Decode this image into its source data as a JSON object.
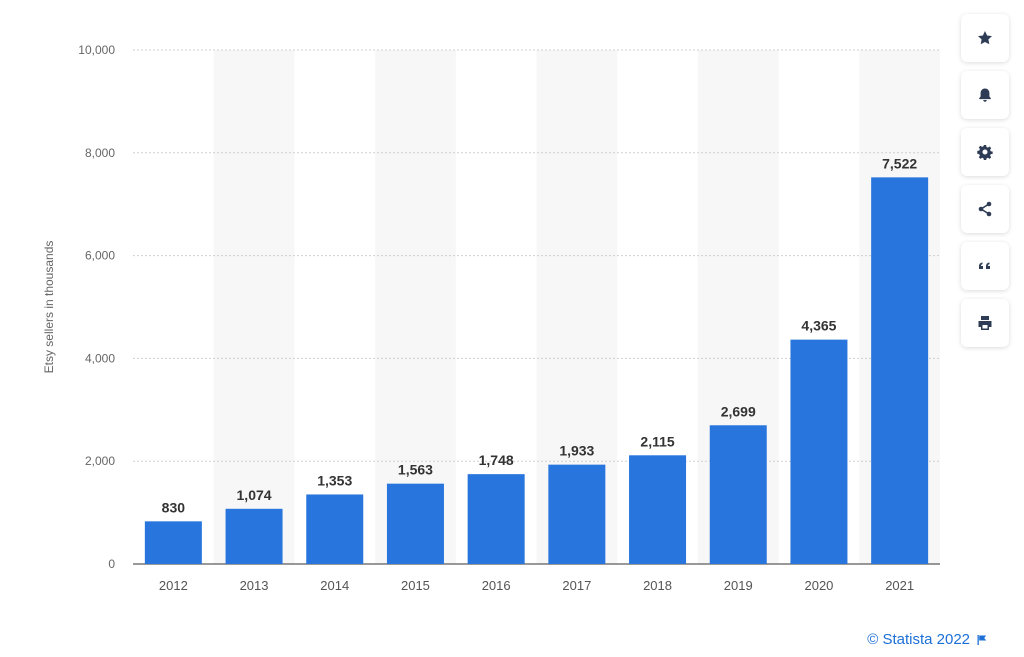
{
  "chart_data": {
    "type": "bar",
    "categories": [
      "2012",
      "2013",
      "2014",
      "2015",
      "2016",
      "2017",
      "2018",
      "2019",
      "2020",
      "2021"
    ],
    "values": [
      830,
      1074,
      1353,
      1563,
      1748,
      1933,
      2115,
      2699,
      4365,
      7522
    ],
    "value_labels": [
      "830",
      "1,074",
      "1,353",
      "1,563",
      "1,748",
      "1,933",
      "2,115",
      "2,699",
      "4,365",
      "7,522"
    ],
    "ylabel": "Etsy sellers in thousands",
    "ylim": [
      0,
      10000
    ],
    "yticks": [
      0,
      2000,
      4000,
      6000,
      8000,
      10000
    ],
    "ytick_labels": [
      "0",
      "2,000",
      "4,000",
      "6,000",
      "8,000",
      "10,000"
    ],
    "grid": true,
    "bar_color": "#2876dd",
    "alt_band_color": "#f7f7f7"
  },
  "toolbar": {
    "buttons": [
      {
        "name": "star",
        "icon": "star-icon"
      },
      {
        "name": "bell",
        "icon": "bell-icon"
      },
      {
        "name": "settings",
        "icon": "gear-icon"
      },
      {
        "name": "share",
        "icon": "share-icon"
      },
      {
        "name": "cite",
        "icon": "quote-icon"
      },
      {
        "name": "print",
        "icon": "print-icon"
      }
    ]
  },
  "footer": {
    "credit": "© Statista 2022",
    "flag_icon": "flag-icon"
  }
}
